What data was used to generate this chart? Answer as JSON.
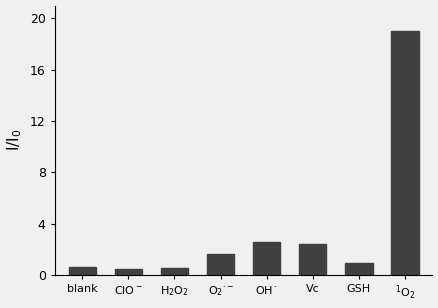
{
  "categories_display": [
    "blank",
    "ClO$^-$",
    "H$_2$O$_2$",
    "O$_2$$^{\\cdot-}$",
    "OH$^\\cdot$",
    "Vc",
    "GSH",
    "$^1$O$_2$"
  ],
  "values": [
    0.65,
    0.45,
    0.55,
    1.6,
    2.6,
    2.4,
    0.9,
    19.0
  ],
  "bar_color": "#404040",
  "ylabel": "I/I$_0$",
  "ylim": [
    0,
    21
  ],
  "yticks": [
    0,
    4,
    8,
    12,
    16,
    20
  ],
  "bar_width": 0.6,
  "figsize": [
    4.38,
    3.08
  ],
  "dpi": 100,
  "bg_color": "#f0f0f0"
}
